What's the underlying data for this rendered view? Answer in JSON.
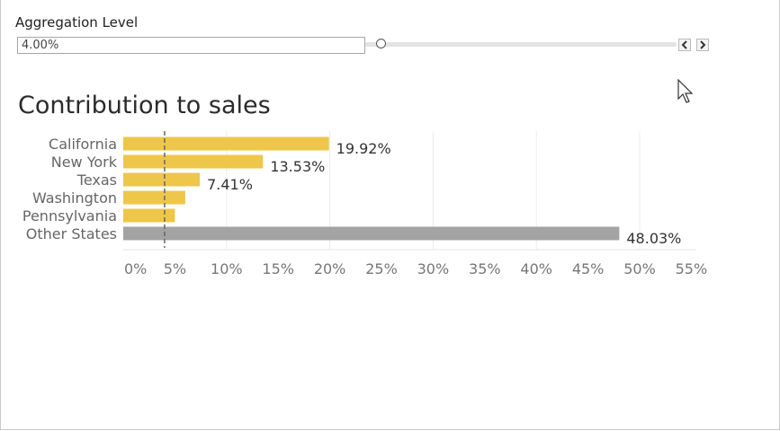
{
  "parameter": {
    "label": "Aggregation Level",
    "value": "4.00%",
    "level": 0.04
  },
  "colors": {
    "highlight_bar": "#EEC64A",
    "other_bar": "#A3A3A3",
    "reference_line": "#666666",
    "grid": "#ececec"
  },
  "chart_data": {
    "type": "bar",
    "orientation": "horizontal",
    "title": "Contribution to sales",
    "categories": [
      "California",
      "New York",
      "Texas",
      "Washington",
      "Pennsylvania",
      "Other States"
    ],
    "values": [
      19.92,
      13.53,
      7.41,
      6.0,
      5.0,
      48.03
    ],
    "labels": [
      "19.92%",
      "13.53%",
      "7.41%",
      "",
      "",
      "48.03%"
    ],
    "groups": [
      "highlight",
      "highlight",
      "highlight",
      "highlight",
      "highlight",
      "other"
    ],
    "xlim": [
      0,
      55
    ],
    "ticks": [
      0,
      5,
      10,
      15,
      20,
      25,
      30,
      35,
      40,
      45,
      50,
      55
    ],
    "tick_labels": [
      "0%",
      "5%",
      "10%",
      "15%",
      "20%",
      "25%",
      "30%",
      "35%",
      "40%",
      "45%",
      "50%",
      "55%"
    ],
    "reference_line": 4,
    "grid": true,
    "xlabel": "",
    "ylabel": ""
  }
}
